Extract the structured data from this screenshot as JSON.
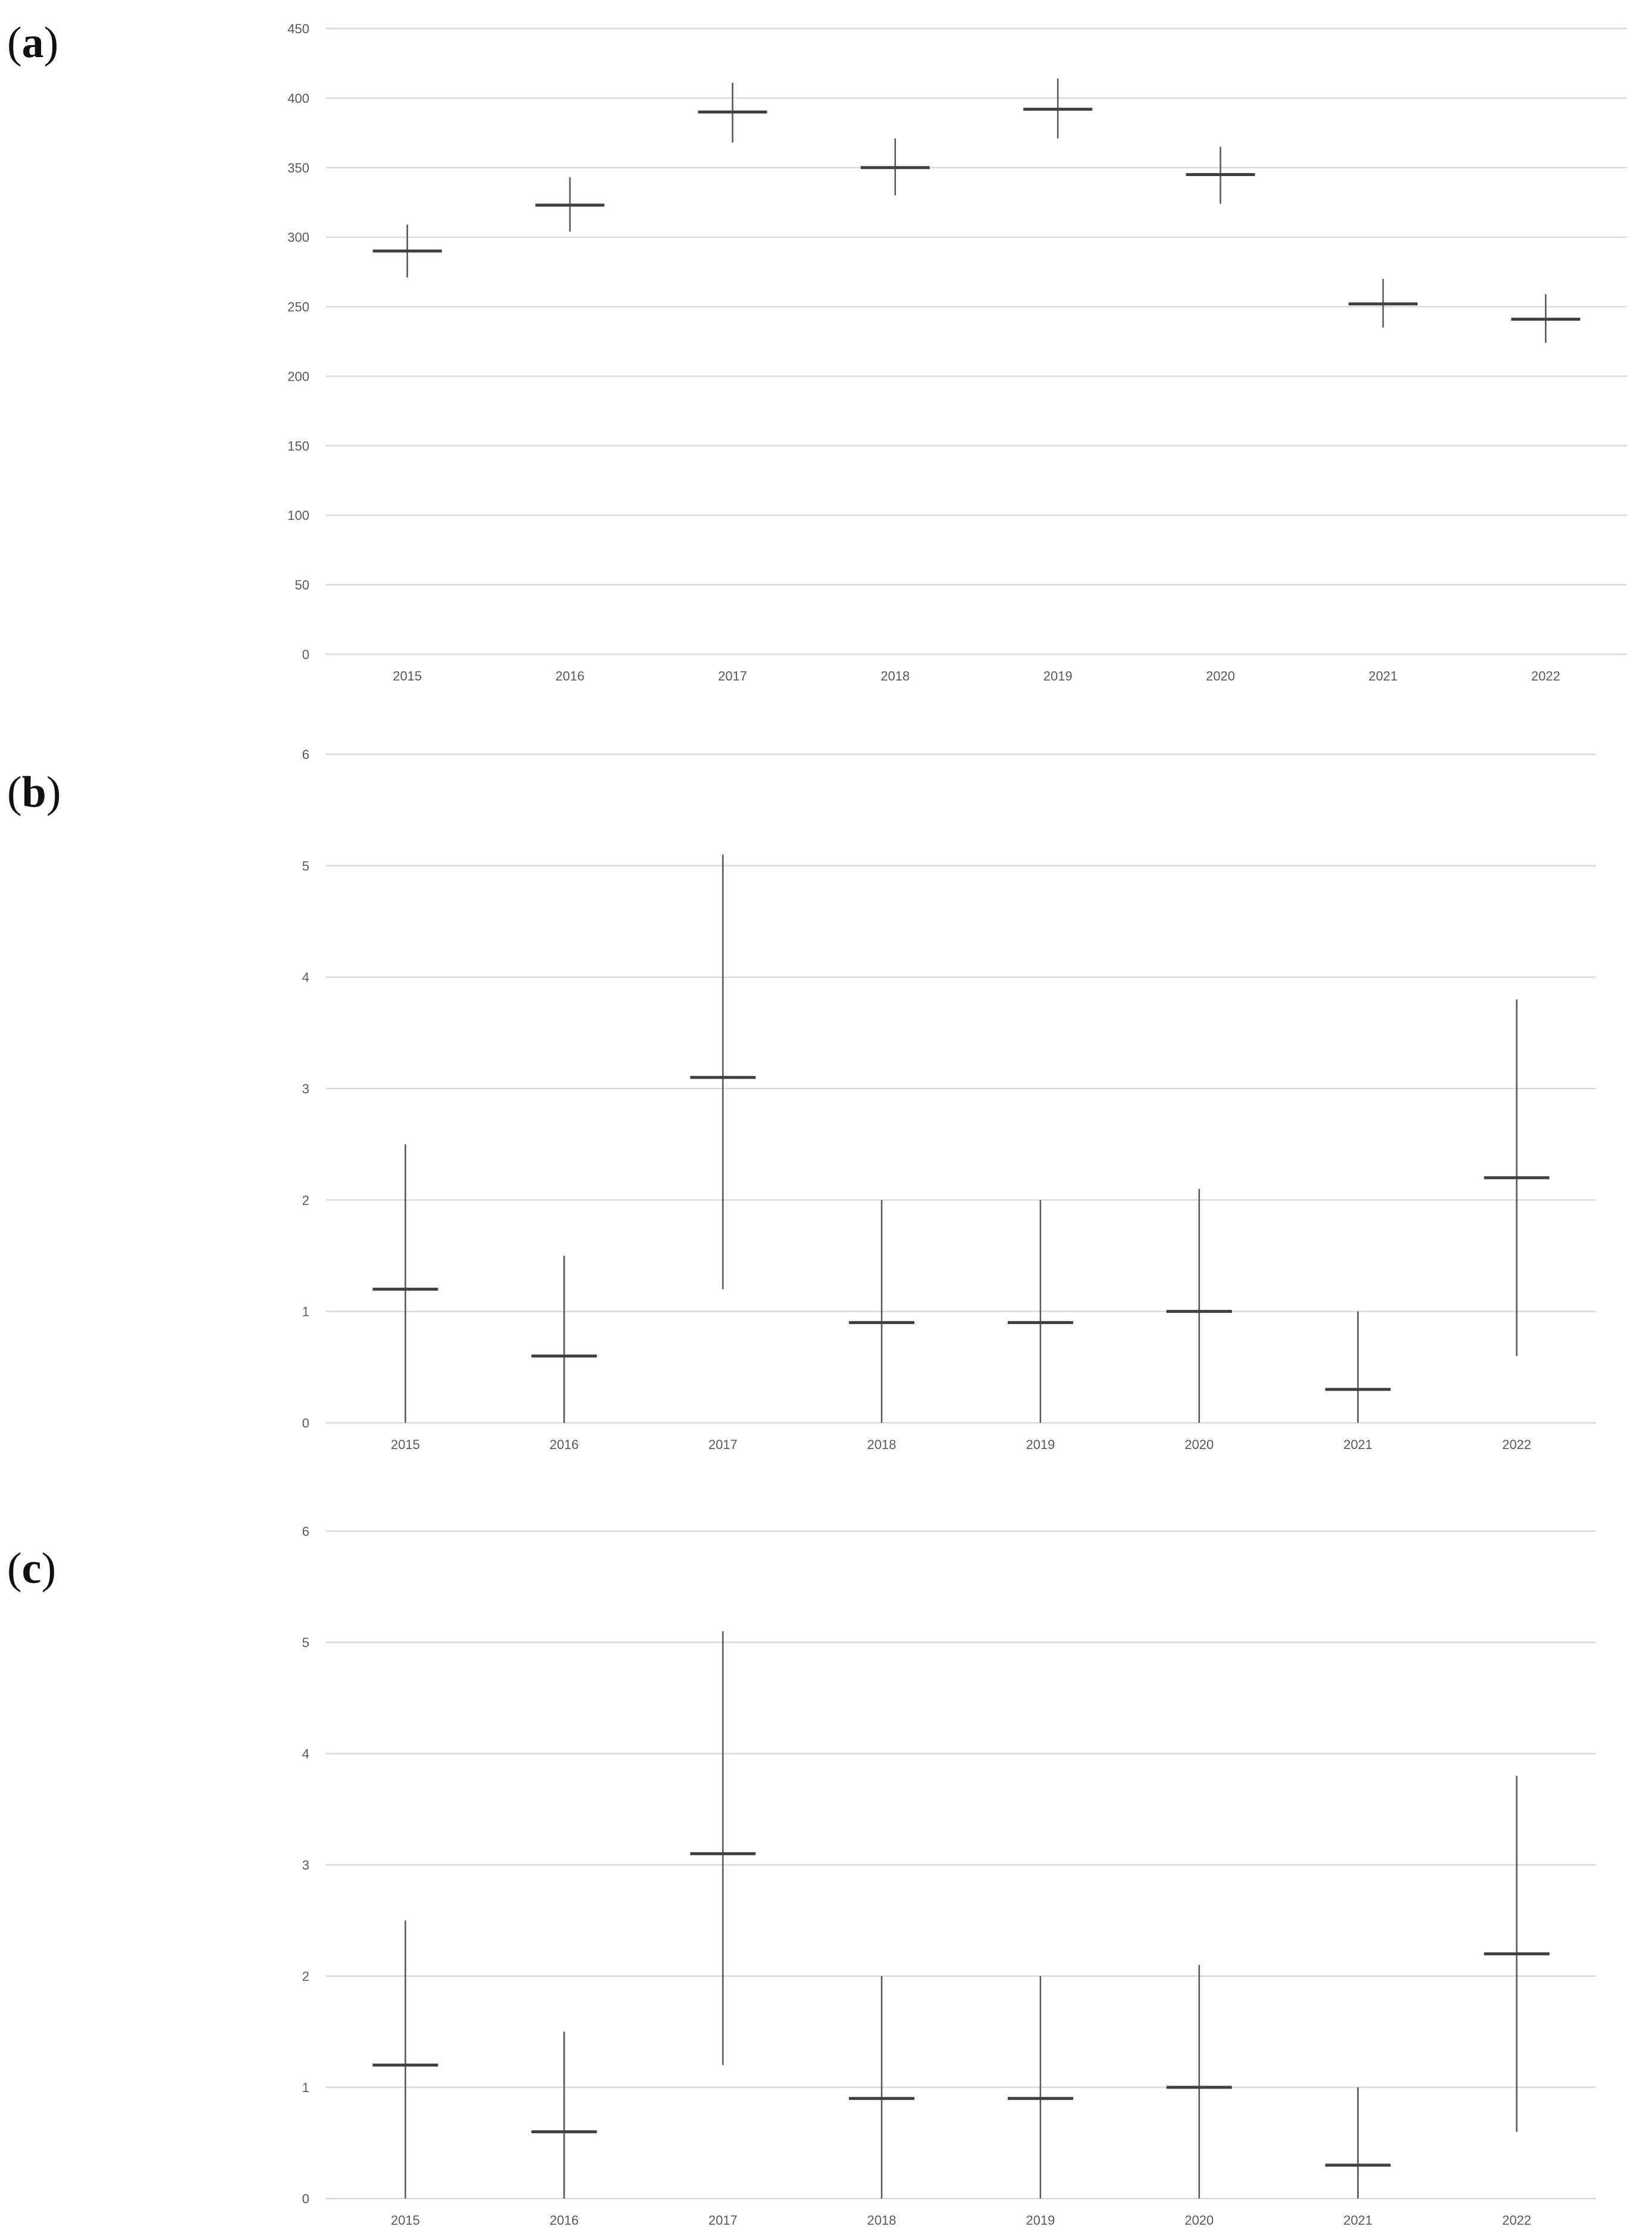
{
  "panels": [
    {
      "label_open": "(",
      "label_letter": "a",
      "label_close": ")"
    },
    {
      "label_open": "(",
      "label_letter": "b",
      "label_close": ")"
    },
    {
      "label_open": "(",
      "label_letter": "c",
      "label_close": ")"
    }
  ],
  "chart_data": [
    {
      "type": "scatter",
      "title": "",
      "xlabel": "",
      "ylabel": "",
      "categories": [
        "2015",
        "2016",
        "2017",
        "2018",
        "2019",
        "2020",
        "2021",
        "2022"
      ],
      "values": [
        290,
        323,
        390,
        350,
        392,
        345,
        252,
        241
      ],
      "low": [
        271,
        304,
        368,
        330,
        371,
        324,
        235,
        224
      ],
      "high": [
        309,
        343,
        411,
        371,
        414,
        365,
        270,
        259
      ],
      "ylim": [
        0,
        450
      ],
      "yticks": [
        0,
        50,
        100,
        150,
        200,
        250,
        300,
        350,
        400,
        450
      ],
      "grid": true,
      "legend": "none"
    },
    {
      "type": "scatter",
      "title": "",
      "xlabel": "",
      "ylabel": "",
      "categories": [
        "2015",
        "2016",
        "2017",
        "2018",
        "2019",
        "2020",
        "2021",
        "2022"
      ],
      "values": [
        1.2,
        0.6,
        3.1,
        0.9,
        0.9,
        1.0,
        0.3,
        2.2
      ],
      "low": [
        0.0,
        0.0,
        1.2,
        0.0,
        0.0,
        0.0,
        0.0,
        0.6
      ],
      "high": [
        2.5,
        1.5,
        5.1,
        2.0,
        2.0,
        2.1,
        1.0,
        3.8
      ],
      "ylim": [
        0,
        6
      ],
      "yticks": [
        0,
        1,
        2,
        3,
        4,
        5,
        6
      ],
      "grid": true,
      "legend": "none"
    },
    {
      "type": "scatter",
      "title": "",
      "xlabel": "",
      "ylabel": "",
      "categories": [
        "2015",
        "2016",
        "2017",
        "2018",
        "2019",
        "2020",
        "2021",
        "2022"
      ],
      "values": [
        1.2,
        0.6,
        3.1,
        0.9,
        0.9,
        1.0,
        0.3,
        2.2
      ],
      "low": [
        0.0,
        0.0,
        1.2,
        0.0,
        0.0,
        0.0,
        0.0,
        0.6
      ],
      "high": [
        2.5,
        1.5,
        5.1,
        2.0,
        2.0,
        2.1,
        1.0,
        3.8
      ],
      "ylim": [
        0,
        6
      ],
      "yticks": [
        0,
        1,
        2,
        3,
        4,
        5,
        6
      ],
      "grid": true,
      "legend": "none"
    }
  ]
}
